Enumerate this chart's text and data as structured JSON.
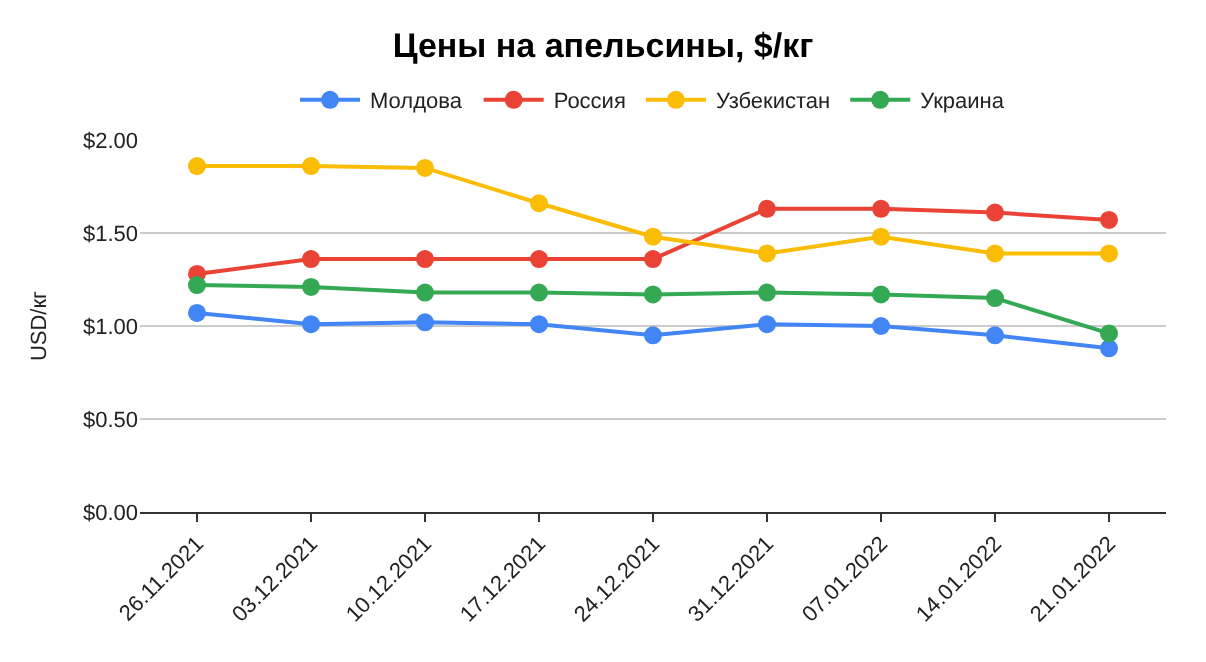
{
  "chart_data": {
    "type": "line",
    "title": "Цены на апельсины, $/кг",
    "ylabel": "USD/кг",
    "categories": [
      "26.11.2021",
      "03.12.2021",
      "10.12.2021",
      "17.12.2021",
      "24.12.2021",
      "31.12.2021",
      "07.01.2022",
      "14.01.2022",
      "21.01.2022"
    ],
    "series": [
      {
        "name": "Молдова",
        "color": "#4285f4",
        "values": [
          1.07,
          1.01,
          1.02,
          1.01,
          0.95,
          1.01,
          1.0,
          0.95,
          0.88
        ]
      },
      {
        "name": "Россия",
        "color": "#ea4335",
        "values": [
          1.28,
          1.36,
          1.36,
          1.36,
          1.36,
          1.63,
          1.63,
          1.61,
          1.57
        ]
      },
      {
        "name": "Узбекистан",
        "color": "#fbbc04",
        "values": [
          1.86,
          1.86,
          1.85,
          1.66,
          1.48,
          1.39,
          1.48,
          1.39,
          1.39
        ]
      },
      {
        "name": "Украина",
        "color": "#34a853",
        "values": [
          1.22,
          1.21,
          1.18,
          1.18,
          1.17,
          1.18,
          1.17,
          1.15,
          0.96
        ]
      }
    ],
    "ylim": [
      0,
      2
    ],
    "yticks": [
      {
        "value": 0,
        "label": "$0.00"
      },
      {
        "value": 0.5,
        "label": "$0.50"
      },
      {
        "value": 1,
        "label": "$1.00"
      },
      {
        "value": 1.5,
        "label": "$1.50"
      },
      {
        "value": 2,
        "label": "$2.00"
      }
    ],
    "grid": "y",
    "legend": "top",
    "marker": "circle",
    "line_style": "solid"
  }
}
